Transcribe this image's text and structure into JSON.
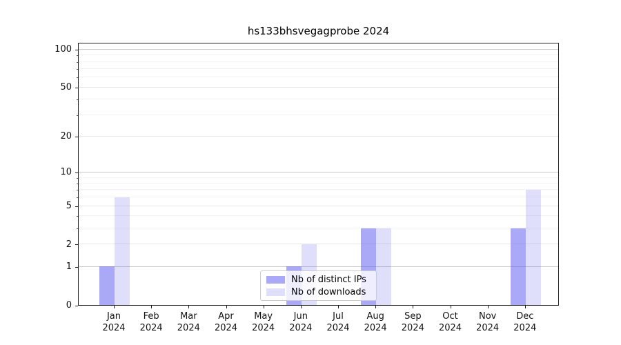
{
  "title": "hs133bhsvegagprobe 2024",
  "colors": {
    "bar_distinct_ips": "#a9a9f7",
    "bar_downloads": "#d9d9f8",
    "bar_distinct_ips_rgba": "rgba(84,84,240,0.5)",
    "bar_downloads_rgba": "rgba(84,84,240,0.19)",
    "spine": "#1f1f1f",
    "gridline_decade": "#c9c9c9",
    "gridline_major": "#e7e7e7",
    "gridline_minor": "#f2f2f2",
    "legend_border": "#cbcbcb"
  },
  "legend": {
    "items": [
      {
        "label": "Nb of distinct IPs"
      },
      {
        "label": "Nb of downloads"
      }
    ]
  },
  "chart_data": {
    "type": "bar",
    "title": "hs133bhsvegagprobe 2024",
    "categories": [
      "Jan 2024",
      "Feb 2024",
      "Mar 2024",
      "Apr 2024",
      "May 2024",
      "Jun 2024",
      "Jul 2024",
      "Aug 2024",
      "Sep 2024",
      "Oct 2024",
      "Nov 2024",
      "Dec 2024"
    ],
    "series": [
      {
        "name": "Nb of distinct IPs",
        "color": "#a9a9f7",
        "fill": "rgba(84,84,240,0.5)",
        "values": [
          1,
          0,
          0,
          0,
          0,
          1,
          0,
          3,
          0,
          0,
          0,
          3
        ]
      },
      {
        "name": "Nb of downloads",
        "color": "#d9d9f8",
        "fill": "rgba(84,84,240,0.19)",
        "values": [
          6,
          0,
          0,
          0,
          0,
          2,
          0,
          3,
          0,
          0,
          0,
          7
        ]
      }
    ],
    "xlabel": "",
    "ylabel": "",
    "yscale": "log1p",
    "ylim": [
      0,
      112
    ],
    "yticks": [
      0,
      1,
      2,
      5,
      10,
      20,
      50,
      100
    ],
    "ytick_labels": [
      "0",
      "1",
      "2",
      "5",
      "10",
      "20",
      "50",
      "100"
    ],
    "decade_ticks": [
      1,
      10,
      100
    ],
    "minor_gridlines": [
      3,
      4,
      6,
      7,
      8,
      9,
      30,
      40,
      60,
      70,
      80,
      90
    ],
    "grid": "horizontal",
    "legend_position": "lower-center"
  }
}
